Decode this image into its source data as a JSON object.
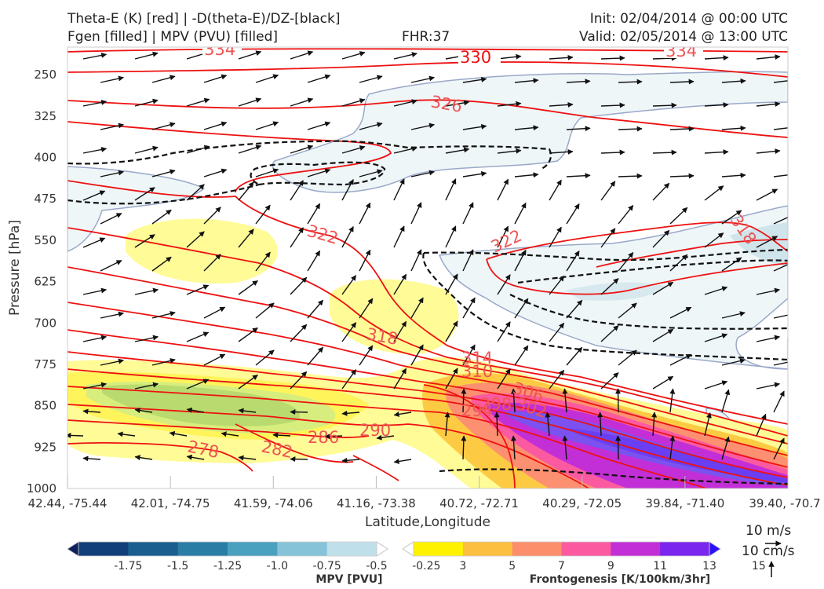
{
  "header": {
    "title_line1": "Theta-E (K) [red] | -D(theta-E)/DZ-[black]",
    "title_line2": "Fgen [filled] | MPV (PVU) [filled]",
    "fhr": "FHR:37",
    "init": "Init: 02/04/2014 @ 00:00 UTC",
    "valid": "Valid: 02/05/2014 @ 13:00 UTC"
  },
  "chart_data": {
    "type": "cross-section",
    "ylabel": "Pressure [hPa]",
    "xlabel": "Latitude,Longitude",
    "y_ticks": [
      250,
      325,
      400,
      475,
      550,
      625,
      700,
      775,
      850,
      925,
      1000
    ],
    "x_ticks": [
      "42.44, -75.44",
      "42.01, -74.75",
      "41.59, -74.06",
      "41.16, -73.38",
      "40.72, -72.71",
      "40.29, -72.05",
      "39.84, -71.40",
      "39.40, -70.7"
    ],
    "ylim": [
      1000,
      200
    ],
    "theta_e_labels": [
      "334",
      "330",
      "334",
      "326",
      "322",
      "322",
      "318",
      "318",
      "314",
      "310",
      "306",
      "302",
      "298",
      "294",
      "290",
      "286",
      "282",
      "278"
    ],
    "mpv_colorbar": {
      "label": "MPV [PVU]",
      "ticks": [
        "-1.75",
        "-1.5",
        "-1.25",
        "-1.0",
        "-0.75",
        "-0.5",
        "-0.25"
      ],
      "colors": [
        "#0d1f5c",
        "#123f7a",
        "#1a5e8f",
        "#2a7ea6",
        "#4aa0bf",
        "#86c3d8",
        "#bfe0ea",
        "#ffffff"
      ]
    },
    "fgen_colorbar": {
      "label": "Frontogenesis [K/100km/3hr]",
      "ticks": [
        "3",
        "5",
        "7",
        "9",
        "11",
        "13",
        "15"
      ],
      "colors": [
        "#ffffff",
        "#fff200",
        "#fdbf3f",
        "#fc8e6b",
        "#fb5aa0",
        "#c22fd6",
        "#7b26ee",
        "#2a12f5"
      ]
    },
    "wind_key": {
      "horizontal": "10 m/s",
      "vertical": "10 cm/s"
    }
  }
}
